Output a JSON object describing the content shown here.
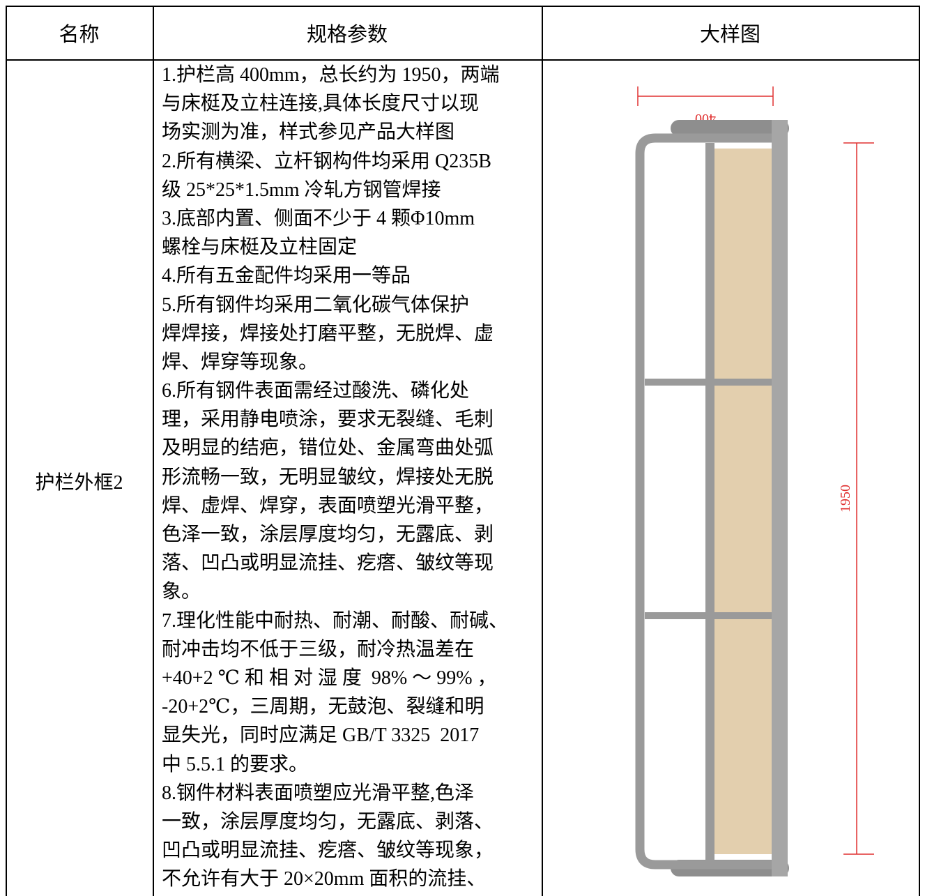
{
  "table": {
    "header": [
      "名称",
      "规格参数",
      "大样图"
    ],
    "rows": [
      {
        "name": "护栏外框2",
        "spec": [
          "1.护栏高 400mm，总长约为 1950，两端",
          "与床梃及立柱连接,具体长度尺寸以现",
          "场实测为准，样式参见产品大样图",
          "2.所有横梁、立杆钢构件均采用 Q235B",
          "级 25*25*1.5mm 冷轧方钢管焊接",
          "3.底部内置、侧面不少于 4 颗Φ10mm",
          "螺栓与床梃及立柱固定",
          "4.所有五金配件均采用一等品",
          "5.所有钢件均采用二氧化碳气体保护",
          "焊焊接，焊接处打磨平整，无脱焊、虚",
          "焊、焊穿等现象。",
          "6.所有钢件表面需经过酸洗、磷化处",
          "理，采用静电喷涂，要求无裂缝、毛刺",
          "及明显的结疤，错位处、金属弯曲处弧",
          "形流畅一致，无明显皱纹，焊接处无脱",
          "焊、虚焊、焊穿，表面喷塑光滑平整，",
          "色泽一致，涂层厚度均匀，无露底、剥",
          "落、凹凸或明显流挂、疙瘩、皱纹等现",
          "象。",
          "7.理化性能中耐热、耐潮、耐酸、耐碱、",
          "耐冲击均不低于三级，耐冷热温差在",
          "+40+2 ℃ 和 相 对 湿 度  98% ～ 99% ，",
          "-20+2℃，三周期，无鼓泡、裂缝和明",
          "显失光，同时应满足 GB/T 3325  2017",
          "中 5.5.1 的要求。",
          "8.钢件材料表面喷塑应光滑平整,色泽",
          "一致，涂层厚度均匀，无露底、剥落、",
          "凹凸或明显流挂、疙瘩、皱纹等现象，",
          "不允许有大于 20×20mm 面积的流挂、"
        ]
      }
    ]
  },
  "drawing": {
    "width_label": "400",
    "height_label": "1950"
  }
}
